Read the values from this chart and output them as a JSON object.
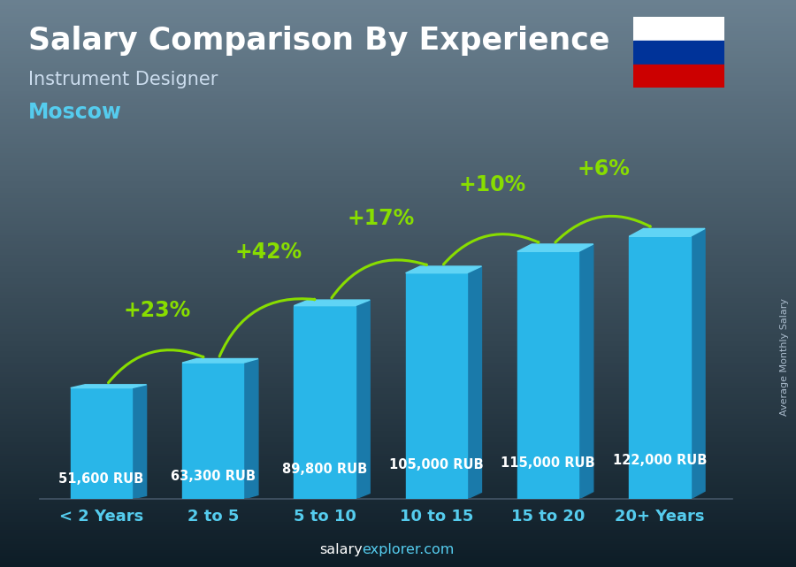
{
  "title": "Salary Comparison By Experience",
  "subtitle": "Instrument Designer",
  "city": "Moscow",
  "categories": [
    "< 2 Years",
    "2 to 5",
    "5 to 10",
    "10 to 15",
    "15 to 20",
    "20+ Years"
  ],
  "values": [
    51600,
    63300,
    89800,
    105000,
    115000,
    122000
  ],
  "labels": [
    "51,600 RUB",
    "63,300 RUB",
    "89,800 RUB",
    "105,000 RUB",
    "115,000 RUB",
    "122,000 RUB"
  ],
  "pct_changes": [
    "+23%",
    "+42%",
    "+17%",
    "+10%",
    "+6%"
  ],
  "bar_front_color": "#29b6e8",
  "bar_side_color": "#1a7aaa",
  "bar_top_color": "#60d4f5",
  "bg_top": "#6a8090",
  "bg_bottom": "#0d1c26",
  "green_color": "#88dd00",
  "white_color": "#ffffff",
  "cyan_color": "#55ccee",
  "label_color": "#ddeeee",
  "ylabel": "Average Monthly Salary",
  "title_fontsize": 25,
  "subtitle_fontsize": 15,
  "city_fontsize": 17,
  "label_fontsize": 10.5,
  "pct_fontsize": 17,
  "cat_fontsize": 13
}
